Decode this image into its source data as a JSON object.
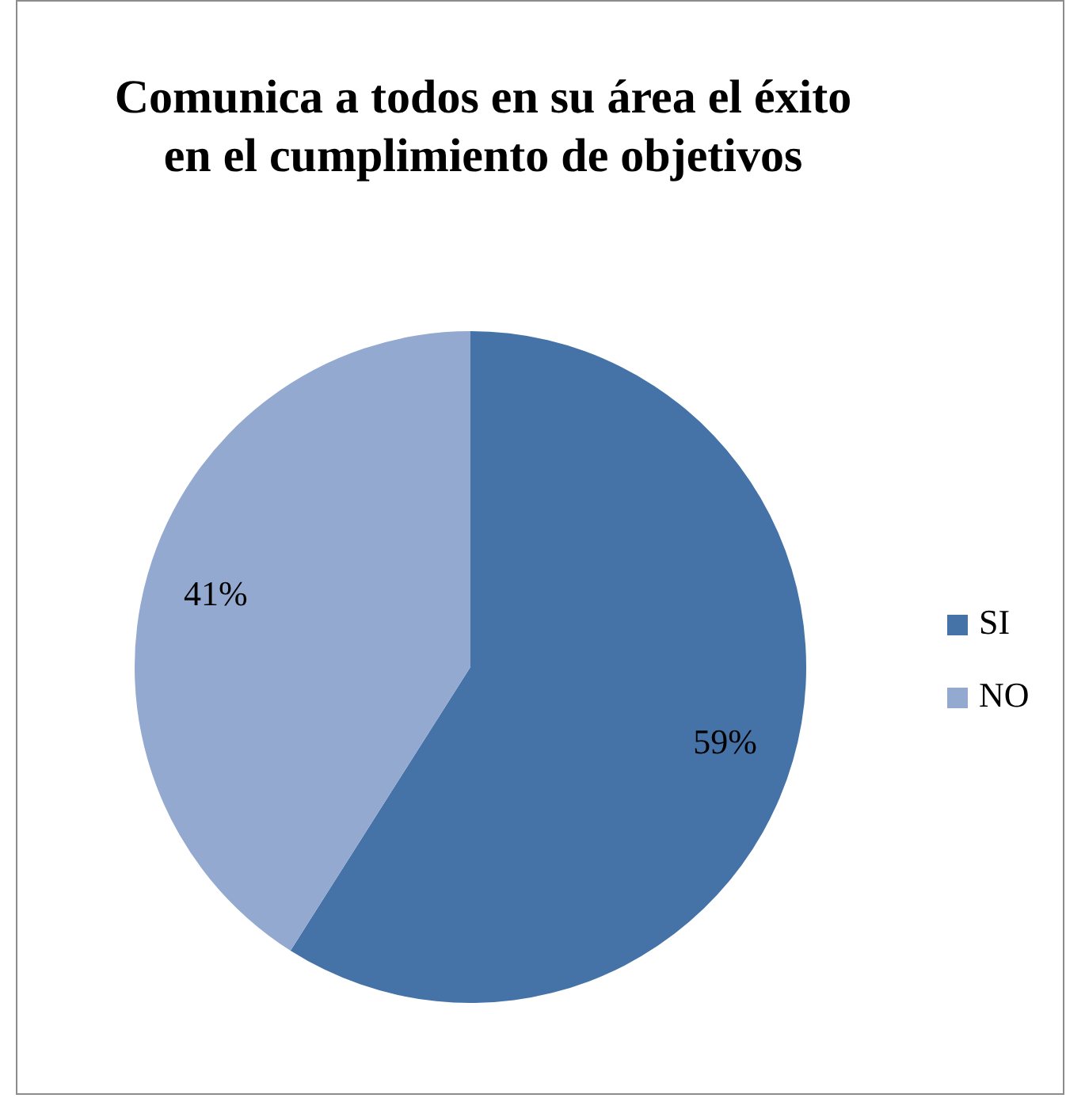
{
  "chart_data": {
    "type": "pie",
    "title": "Comunica a todos en su área el éxito en el cumplimiento de objetivos",
    "categories": [
      "SI",
      "NO"
    ],
    "values": [
      59,
      41
    ],
    "colors": [
      "#4572a7",
      "#93a9cf"
    ],
    "value_labels": [
      "59%",
      "41%"
    ],
    "legend": "right"
  }
}
